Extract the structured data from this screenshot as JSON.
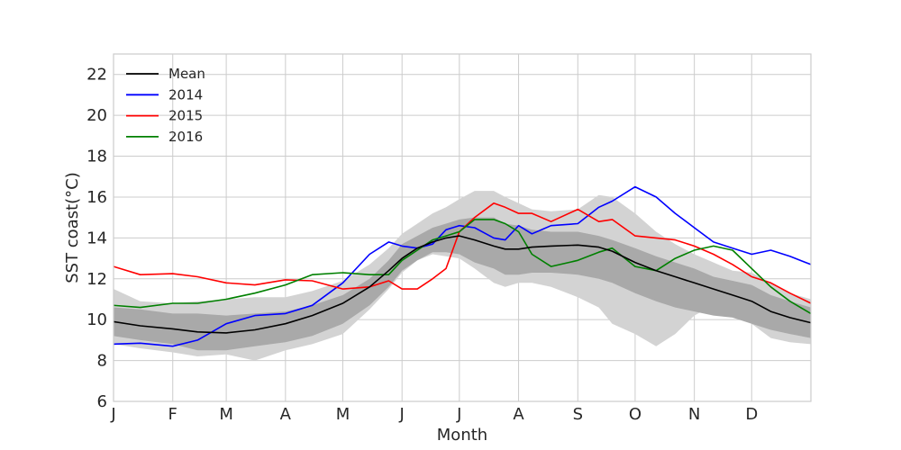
{
  "chart_data": {
    "type": "line",
    "xlabel": "Month",
    "ylabel": "SST coast(°C)",
    "xlim": [
      1,
      366
    ],
    "ylim": [
      6,
      23
    ],
    "grid": true,
    "legend_position": "top-left",
    "x_ticks": [
      {
        "label": "J",
        "day": 1
      },
      {
        "label": "F",
        "day": 32
      },
      {
        "label": "M",
        "day": 60
      },
      {
        "label": "A",
        "day": 91
      },
      {
        "label": "M",
        "day": 121
      },
      {
        "label": "J",
        "day": 152
      },
      {
        "label": "J",
        "day": 182
      },
      {
        "label": "A",
        "day": 213
      },
      {
        "label": "S",
        "day": 244
      },
      {
        "label": "O",
        "day": 274
      },
      {
        "label": "N",
        "day": 305
      },
      {
        "label": "D",
        "day": 335
      }
    ],
    "y_ticks": [
      6,
      8,
      10,
      12,
      14,
      16,
      18,
      20,
      22
    ],
    "x": [
      1,
      15,
      32,
      45,
      60,
      75,
      91,
      105,
      121,
      135,
      145,
      152,
      160,
      168,
      175,
      182,
      190,
      200,
      206,
      213,
      220,
      230,
      244,
      255,
      262,
      274,
      285,
      295,
      305,
      315,
      325,
      335,
      345,
      355,
      366
    ],
    "bands": [
      {
        "name": "outer-range",
        "color": "#d3d3d3",
        "lower": [
          8.8,
          8.6,
          8.4,
          8.2,
          8.3,
          8.0,
          8.5,
          8.8,
          9.3,
          10.5,
          11.5,
          12.3,
          12.9,
          13.2,
          13.1,
          13.0,
          12.5,
          11.8,
          11.6,
          11.8,
          11.8,
          11.6,
          11.1,
          10.6,
          9.8,
          9.3,
          8.7,
          9.3,
          10.2,
          10.7,
          10.4,
          9.8,
          9.1,
          8.9,
          8.8
        ],
        "upper": [
          11.5,
          10.9,
          10.8,
          10.9,
          11.0,
          11.1,
          11.1,
          11.4,
          11.9,
          12.7,
          13.5,
          14.2,
          14.7,
          15.2,
          15.5,
          15.9,
          16.3,
          16.3,
          16.0,
          15.7,
          15.4,
          15.3,
          15.4,
          16.1,
          16.0,
          15.2,
          14.3,
          13.7,
          13.2,
          12.8,
          12.4,
          12.3,
          11.8,
          11.3,
          11.0
        ]
      },
      {
        "name": "inner-range",
        "color": "#a9a9a9",
        "lower": [
          9.2,
          9.0,
          8.8,
          8.5,
          8.5,
          8.7,
          8.9,
          9.2,
          9.8,
          10.7,
          11.6,
          12.4,
          12.9,
          13.3,
          13.3,
          13.2,
          12.8,
          12.5,
          12.2,
          12.2,
          12.3,
          12.3,
          12.2,
          12.0,
          11.8,
          11.3,
          10.9,
          10.6,
          10.4,
          10.2,
          10.1,
          9.8,
          9.5,
          9.3,
          9.1
        ],
        "upper": [
          10.6,
          10.5,
          10.3,
          10.3,
          10.2,
          10.3,
          10.4,
          10.7,
          11.2,
          12.0,
          12.9,
          13.7,
          14.1,
          14.5,
          14.7,
          14.9,
          15.0,
          15.0,
          14.7,
          14.6,
          14.4,
          14.3,
          14.3,
          14.1,
          13.9,
          13.5,
          13.1,
          12.8,
          12.5,
          12.1,
          11.9,
          11.7,
          11.2,
          10.9,
          10.6
        ]
      }
    ],
    "series": [
      {
        "name": "Mean",
        "color": "#000000",
        "values": [
          9.9,
          9.7,
          9.55,
          9.4,
          9.35,
          9.5,
          9.8,
          10.2,
          10.8,
          11.6,
          12.4,
          13.0,
          13.5,
          13.8,
          14.0,
          14.1,
          13.9,
          13.6,
          13.45,
          13.45,
          13.55,
          13.6,
          13.65,
          13.55,
          13.35,
          12.8,
          12.4,
          12.1,
          11.8,
          11.5,
          11.2,
          10.9,
          10.4,
          10.1,
          9.85
        ]
      },
      {
        "name": "2014",
        "color": "#0000ff",
        "values": [
          8.8,
          8.85,
          8.7,
          9.0,
          9.8,
          10.2,
          10.3,
          10.7,
          11.8,
          13.2,
          13.8,
          13.6,
          13.5,
          13.7,
          14.4,
          14.6,
          14.5,
          14.0,
          13.9,
          14.6,
          14.2,
          14.6,
          14.7,
          15.5,
          15.8,
          16.5,
          16.0,
          15.2,
          14.5,
          13.8,
          13.5,
          13.2,
          13.4,
          13.1,
          12.7
        ]
      },
      {
        "name": "2015",
        "color": "#ff0000",
        "values": [
          12.6,
          12.2,
          12.25,
          12.1,
          11.8,
          11.7,
          11.95,
          11.9,
          11.5,
          11.6,
          11.9,
          11.5,
          11.5,
          12.0,
          12.5,
          14.3,
          15.0,
          15.7,
          15.5,
          15.2,
          15.2,
          14.8,
          15.4,
          14.8,
          14.9,
          14.1,
          14.0,
          13.9,
          13.6,
          13.2,
          12.7,
          12.1,
          11.8,
          11.3,
          10.8
        ]
      },
      {
        "name": "2016",
        "color": "#008000",
        "values": [
          10.7,
          10.6,
          10.8,
          10.8,
          11.0,
          11.3,
          11.7,
          12.2,
          12.3,
          12.2,
          12.2,
          12.9,
          13.4,
          13.9,
          14.1,
          14.3,
          14.9,
          14.9,
          14.7,
          14.3,
          13.2,
          12.6,
          12.9,
          13.3,
          13.5,
          12.6,
          12.4,
          13.0,
          13.4,
          13.6,
          13.4,
          12.5,
          11.6,
          10.9,
          10.3
        ]
      }
    ]
  }
}
